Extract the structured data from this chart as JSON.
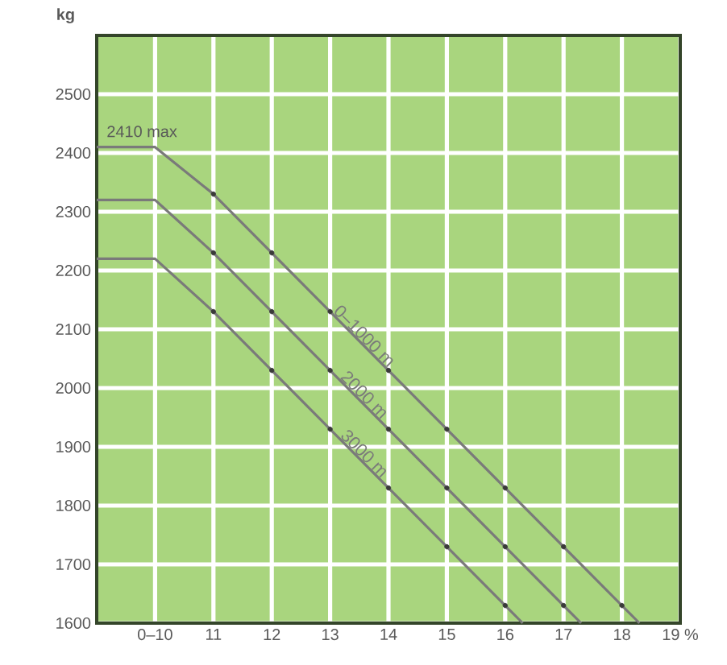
{
  "chart_data": {
    "type": "line",
    "ylabel": "kg",
    "xlim": [
      9,
      19
    ],
    "ylim": [
      1600,
      2600
    ],
    "xticks": [
      {
        "value": 10,
        "label": "0–10"
      },
      11,
      12,
      13,
      14,
      15,
      16,
      17,
      18,
      {
        "value": 19,
        "label": "19 %"
      }
    ],
    "yticks": [
      1600,
      1700,
      1800,
      1900,
      2000,
      2100,
      2200,
      2300,
      2400,
      2500
    ],
    "grid": true,
    "line_style": "solid",
    "marker": "none",
    "annotations": [
      {
        "text": "2410 max",
        "x": 9,
        "y": 2410
      }
    ],
    "series": [
      {
        "name": "0–1000 m",
        "color": "#7a7a7a",
        "x": [
          9,
          10,
          11,
          12,
          13,
          14,
          15,
          16,
          17,
          18,
          18.3
        ],
        "values": [
          2410,
          2410,
          2330,
          2230,
          2130,
          2030,
          1930,
          1830,
          1730,
          1630,
          1600
        ]
      },
      {
        "name": "2000 m",
        "color": "#7a7a7a",
        "x": [
          9,
          10,
          11,
          12,
          13,
          14,
          15,
          16,
          17,
          17.3
        ],
        "values": [
          2320,
          2320,
          2230,
          2130,
          2030,
          1930,
          1830,
          1730,
          1630,
          1600
        ]
      },
      {
        "name": "3000 m",
        "color": "#7a7a7a",
        "x": [
          9,
          10,
          11,
          12,
          13,
          14,
          15,
          16,
          16.3
        ],
        "values": [
          2220,
          2220,
          2130,
          2030,
          1930,
          1830,
          1730,
          1630,
          1600
        ]
      },
      {
        "type": "scatter",
        "marker": "circle",
        "color": "#3a3a3a",
        "x": [
          11,
          12,
          13,
          14,
          15,
          16,
          17,
          18
        ],
        "values": [
          2330,
          2230,
          2130,
          2030,
          1930,
          1830,
          1730,
          1630
        ]
      },
      {
        "type": "scatter",
        "marker": "circle",
        "color": "#3a3a3a",
        "x": [
          11,
          12,
          13,
          14,
          15,
          16,
          17
        ],
        "values": [
          2230,
          2130,
          2030,
          1930,
          1830,
          1730,
          1630
        ]
      },
      {
        "type": "scatter",
        "marker": "circle",
        "color": "#3a3a3a",
        "x": [
          11,
          12,
          13,
          14,
          15,
          16
        ],
        "values": [
          2130,
          2030,
          1930,
          1830,
          1730,
          1630
        ]
      }
    ]
  }
}
